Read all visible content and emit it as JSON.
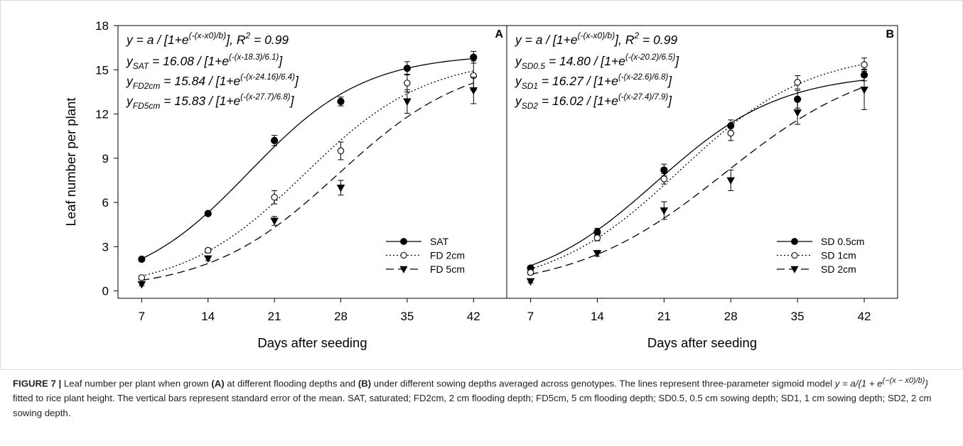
{
  "chart_data": [
    {
      "type": "scatter",
      "panel_label": "A",
      "xlabel": "Days after seeding",
      "ylabel": "Leaf number per plant",
      "xlim": [
        4.5,
        45.5
      ],
      "ylim": [
        -0.5,
        18
      ],
      "x_ticks": [
        7,
        14,
        21,
        28,
        35,
        42
      ],
      "y_ticks": [
        0,
        3,
        6,
        9,
        12,
        15,
        18
      ],
      "legend_position": "bottom-right",
      "equations": {
        "general": {
          "base": "y = a / [1+e",
          "exp": "(-(x-x0)/b)",
          "tail": "], R",
          "sup2": "2",
          "end": " = 0.99"
        },
        "lines": [
          {
            "lhs": "y",
            "sub": "SAT",
            "rhs": " =  16.08 / [1+e",
            "exp": "(-(x-18.3)/6.1)",
            "tail": "]"
          },
          {
            "lhs": "y",
            "sub": "FD2cm",
            "rhs": " =  15.84 / [1+e",
            "exp": "(-(x-24.16)/6.4)",
            "tail": "]"
          },
          {
            "lhs": "y",
            "sub": "FD5cm",
            "rhs": " =  15.83 / [1+e",
            "exp": "(-(x-27.7)/6.8)",
            "tail": "]"
          }
        ]
      },
      "series": [
        {
          "name": "SAT",
          "marker": "filled-circle",
          "line": "solid",
          "x": [
            7,
            14,
            21,
            28,
            35,
            42
          ],
          "y": [
            2.15,
            5.25,
            10.2,
            12.85,
            15.1,
            15.85
          ],
          "err": [
            0.1,
            0.15,
            0.35,
            0.3,
            0.45,
            0.4
          ],
          "fit": {
            "a": 16.08,
            "x0": 18.3,
            "b": 6.1
          }
        },
        {
          "name": "FD 2cm",
          "marker": "open-circle",
          "line": "dotted",
          "x": [
            7,
            14,
            21,
            28,
            35,
            42
          ],
          "y": [
            0.9,
            2.75,
            6.35,
            9.5,
            14.1,
            14.6
          ],
          "err": [
            0.15,
            0.15,
            0.45,
            0.6,
            0.6,
            1.0
          ],
          "fit": {
            "a": 15.84,
            "x0": 24.16,
            "b": 6.4
          }
        },
        {
          "name": "FD 5cm",
          "marker": "filled-triangle-down",
          "line": "dashed",
          "x": [
            7,
            14,
            21,
            28,
            35,
            42
          ],
          "y": [
            0.45,
            2.2,
            4.75,
            7.0,
            12.85,
            13.6
          ],
          "err": [
            0.1,
            0.15,
            0.3,
            0.5,
            0.8,
            0.9
          ],
          "fit": {
            "a": 15.83,
            "x0": 27.7,
            "b": 6.8
          }
        }
      ]
    },
    {
      "type": "scatter",
      "panel_label": "B",
      "xlabel": "Days after seeding",
      "ylabel": "",
      "xlim": [
        4.5,
        45.5
      ],
      "ylim": [
        -0.5,
        18
      ],
      "x_ticks": [
        7,
        14,
        21,
        28,
        35,
        42
      ],
      "y_ticks": [],
      "legend_position": "bottom-right",
      "equations": {
        "general": {
          "base": "y = a / [1+e",
          "exp": "(-(x-x0)/b)",
          "tail": "], R",
          "sup2": "2",
          "end": " = 0.99"
        },
        "lines": [
          {
            "lhs": "y",
            "sub": "SD0.5",
            "rhs": " =  14.80 / [1+e",
            "exp": "(-(x-20.2)/6.5)",
            "tail": "]"
          },
          {
            "lhs": "y",
            "sub": "SD1",
            "rhs": " =  16.27 / [1+e",
            "exp": "(-(x-22.6)/6.8)",
            "tail": "]"
          },
          {
            "lhs": "y",
            "sub": "SD2",
            "rhs": " =  16.02 / [1+e",
            "exp": "(-(x-27.4)/7.9)",
            "tail": "]"
          }
        ]
      },
      "series": [
        {
          "name": "SD 0.5cm",
          "marker": "filled-circle",
          "line": "solid",
          "x": [
            7,
            14,
            21,
            28,
            35,
            42
          ],
          "y": [
            1.55,
            4.0,
            8.2,
            11.2,
            13.0,
            14.65
          ],
          "err": [
            0.15,
            0.25,
            0.4,
            0.4,
            0.6,
            0.4
          ],
          "fit": {
            "a": 14.8,
            "x0": 20.2,
            "b": 6.5
          }
        },
        {
          "name": "SD 1cm",
          "marker": "open-circle",
          "line": "dotted",
          "x": [
            7,
            14,
            21,
            28,
            35,
            42
          ],
          "y": [
            1.25,
            3.6,
            7.6,
            10.7,
            14.15,
            15.35
          ],
          "err": [
            0.15,
            0.2,
            0.35,
            0.5,
            0.45,
            0.45
          ],
          "fit": {
            "a": 16.27,
            "x0": 22.6,
            "b": 6.8
          }
        },
        {
          "name": "SD 2cm",
          "marker": "filled-triangle-down",
          "line": "dashed",
          "x": [
            7,
            14,
            21,
            28,
            35,
            42
          ],
          "y": [
            0.65,
            2.55,
            5.45,
            7.5,
            12.1,
            13.65
          ],
          "err": [
            0.1,
            0.2,
            0.6,
            0.7,
            0.8,
            1.35
          ],
          "fit": {
            "a": 16.02,
            "x0": 27.4,
            "b": 7.9
          }
        }
      ]
    }
  ],
  "caption": {
    "lead": "FIGURE 7 | ",
    "p1": "Leaf number per plant when grown ",
    "b1": "(A)",
    "p2": " at different flooding depths and ",
    "b2": "(B)",
    "p3": " under different sowing depths averaged across genotypes. The lines represent three-parameter sigmoid model ",
    "formula": "y = a/{1 + e",
    "formula_exp": "(−(x − x0)/b)",
    "formula_end": "}",
    "p4": " fitted to rice plant height. The vertical bars represent standard error of the mean. SAT, saturated; FD2cm, 2 cm flooding depth; FD5cm, 5 cm flooding depth; SD0.5, 0.5 cm sowing depth; SD1, 1 cm sowing depth; SD2, 2 cm sowing depth."
  }
}
